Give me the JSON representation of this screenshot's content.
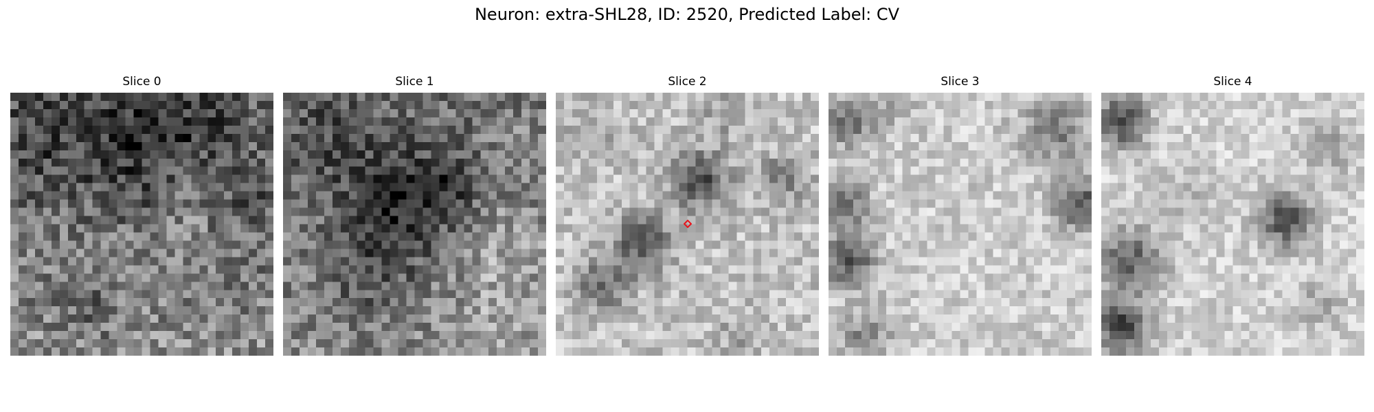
{
  "figure": {
    "title": "Neuron: extra-SHL28, ID: 2520, Predicted Label: CV"
  },
  "slices": [
    {
      "title": "Slice 0",
      "tone": "dark"
    },
    {
      "title": "Slice 1",
      "tone": "dark"
    },
    {
      "title": "Slice 2",
      "tone": "mixed",
      "has_marker": true
    },
    {
      "title": "Slice 3",
      "tone": "light"
    },
    {
      "title": "Slice 4",
      "tone": "light"
    }
  ],
  "marker": {
    "shape": "diamond",
    "color": "#e8141c"
  },
  "colormap": "gray"
}
